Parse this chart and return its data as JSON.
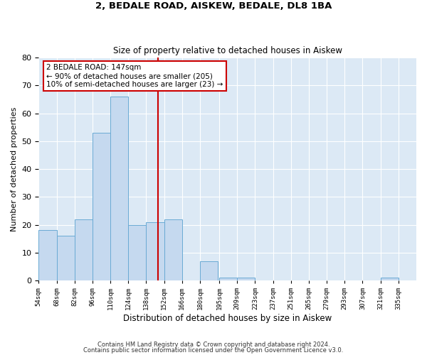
{
  "title_line1": "2, BEDALE ROAD, AISKEW, BEDALE, DL8 1BA",
  "title_line2": "Size of property relative to detached houses in Aiskew",
  "xlabel": "Distribution of detached houses by size in Aiskew",
  "ylabel": "Number of detached properties",
  "footnote1": "Contains HM Land Registry data © Crown copyright and database right 2024.",
  "footnote2": "Contains public sector information licensed under the Open Government Licence v3.0.",
  "annotation_title": "2 BEDALE ROAD: 147sqm",
  "annotation_line2": "← 90% of detached houses are smaller (205)",
  "annotation_line3": "10% of semi-detached houses are larger (23) →",
  "property_size": 147,
  "bar_color": "#c5d9ef",
  "bar_edge_color": "#6aaad4",
  "vline_color": "#cc0000",
  "annotation_box_color": "#cc0000",
  "background_color": "#dce9f5",
  "bins": [
    54,
    68,
    82,
    96,
    110,
    124,
    138,
    152,
    166,
    180,
    195,
    209,
    223,
    237,
    251,
    265,
    279,
    293,
    307,
    321,
    335
  ],
  "counts": [
    18,
    16,
    22,
    53,
    66,
    20,
    21,
    22,
    0,
    7,
    1,
    1,
    0,
    0,
    0,
    0,
    0,
    0,
    0,
    1
  ],
  "ylim": [
    0,
    80
  ],
  "yticks": [
    0,
    10,
    20,
    30,
    40,
    50,
    60,
    70,
    80
  ]
}
